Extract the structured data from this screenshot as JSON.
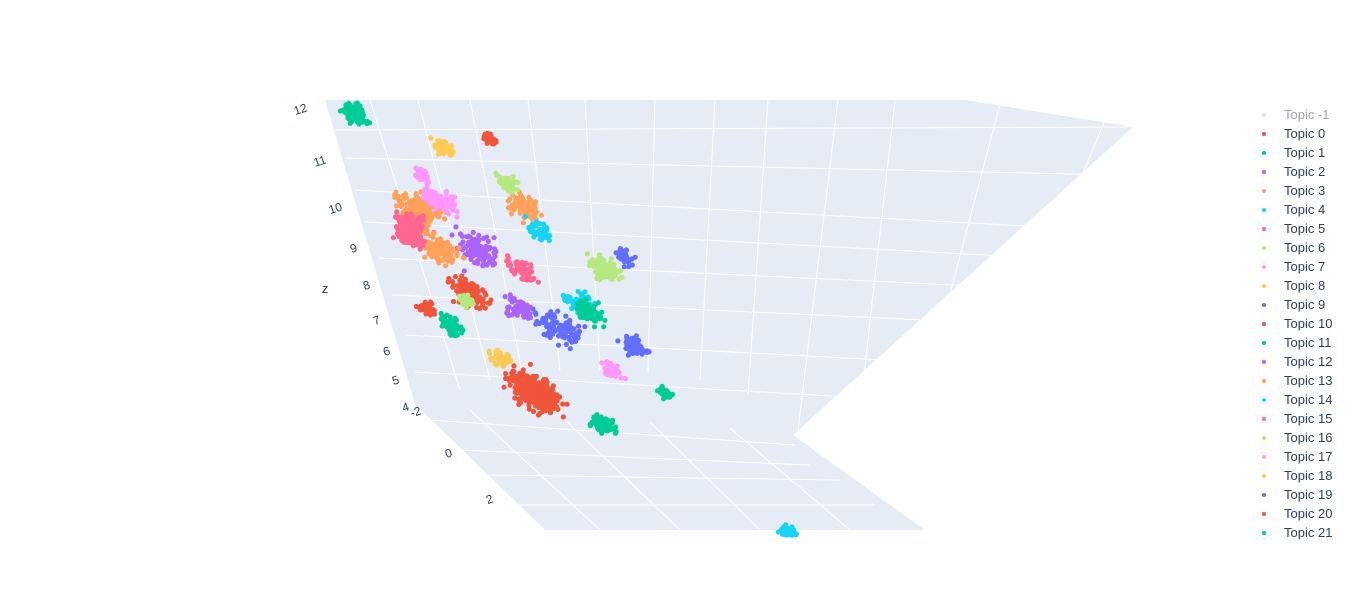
{
  "chart_data": {
    "type": "scatter3d",
    "title": "",
    "scene": {
      "background": "#e5ecf6",
      "gridcolor": "#ffffff",
      "z_axis": {
        "title": "z",
        "ticks": [
          "4",
          "5",
          "6",
          "7",
          "8",
          "9",
          "10",
          "11",
          "12"
        ],
        "range": [
          4,
          12
        ]
      },
      "x_axis": {
        "title": "",
        "ticks": [
          "-2",
          "0",
          "2"
        ],
        "range": [
          -2,
          2
        ]
      }
    },
    "legend": {
      "position": "right",
      "items": [
        {
          "name": "Topic -1",
          "color": "#bcc3cf",
          "visible": false
        },
        {
          "name": "Topic 0",
          "color": "#ef553b",
          "visible": true
        },
        {
          "name": "Topic 1",
          "color": "#00cc96",
          "visible": true
        },
        {
          "name": "Topic 2",
          "color": "#ab63fa",
          "visible": true
        },
        {
          "name": "Topic 3",
          "color": "#ffa15a",
          "visible": true
        },
        {
          "name": "Topic 4",
          "color": "#19d3f3",
          "visible": true
        },
        {
          "name": "Topic 5",
          "color": "#ff6692",
          "visible": true
        },
        {
          "name": "Topic 6",
          "color": "#b6e880",
          "visible": true
        },
        {
          "name": "Topic 7",
          "color": "#ff97ff",
          "visible": true
        },
        {
          "name": "Topic 8",
          "color": "#fecb52",
          "visible": true
        },
        {
          "name": "Topic 9",
          "color": "#636efa",
          "visible": true
        },
        {
          "name": "Topic 10",
          "color": "#ef553b",
          "visible": true
        },
        {
          "name": "Topic 11",
          "color": "#00cc96",
          "visible": true
        },
        {
          "name": "Topic 12",
          "color": "#ab63fa",
          "visible": true
        },
        {
          "name": "Topic 13",
          "color": "#ffa15a",
          "visible": true
        },
        {
          "name": "Topic 14",
          "color": "#19d3f3",
          "visible": true
        },
        {
          "name": "Topic 15",
          "color": "#ff6692",
          "visible": true
        },
        {
          "name": "Topic 16",
          "color": "#b6e880",
          "visible": true
        },
        {
          "name": "Topic 17",
          "color": "#ff97ff",
          "visible": true
        },
        {
          "name": "Topic 18",
          "color": "#fecb52",
          "visible": true
        },
        {
          "name": "Topic 19",
          "color": "#636efa",
          "visible": true
        },
        {
          "name": "Topic 20",
          "color": "#ef553b",
          "visible": true
        },
        {
          "name": "Topic 21",
          "color": "#00cc96",
          "visible": true
        }
      ]
    },
    "clusters": [
      {
        "topic": "Topic 0",
        "x": -0.5,
        "y": 4.6,
        "count": 380,
        "spread": 0.35
      },
      {
        "topic": "Topic 0",
        "x": -0.9,
        "y": 7.1,
        "count": 140,
        "spread": 0.25
      },
      {
        "topic": "Topic 1",
        "x": -1.6,
        "y": 11.7,
        "count": 160,
        "spread": 0.18
      },
      {
        "topic": "Topic 1",
        "x": 0.4,
        "y": 3.9,
        "count": 90,
        "spread": 0.16
      },
      {
        "topic": "Topic 1",
        "x": -1.4,
        "y": 6.2,
        "count": 70,
        "spread": 0.15
      },
      {
        "topic": "Topic 1",
        "x": 1.6,
        "y": 4.9,
        "count": 40,
        "spread": 0.1
      },
      {
        "topic": "Topic 2",
        "x": -0.5,
        "y": 8.3,
        "count": 140,
        "spread": 0.3
      },
      {
        "topic": "Topic 3",
        "x": -1.2,
        "y": 9.2,
        "count": 160,
        "spread": 0.32
      },
      {
        "topic": "Topic 3",
        "x": 0.5,
        "y": 9.6,
        "count": 90,
        "spread": 0.22
      },
      {
        "topic": "Topic 4",
        "x": 0.8,
        "y": 7.1,
        "count": 90,
        "spread": 0.22
      },
      {
        "topic": "Topic 4",
        "x": 2.7,
        "y": 1.4,
        "count": 130,
        "spread": 0.12
      },
      {
        "topic": "Topic 5",
        "x": -1.4,
        "y": 8.8,
        "count": 110,
        "spread": 0.22
      },
      {
        "topic": "Topic 5",
        "x": 0.1,
        "y": 7.9,
        "count": 80,
        "spread": 0.2
      },
      {
        "topic": "Topic 6",
        "x": 1.4,
        "y": 8.1,
        "count": 110,
        "spread": 0.22
      },
      {
        "topic": "Topic 6",
        "x": -1.0,
        "y": 6.9,
        "count": 50,
        "spread": 0.12
      },
      {
        "topic": "Topic 7",
        "x": -0.8,
        "y": 9.6,
        "count": 100,
        "spread": 0.25
      },
      {
        "topic": "Topic 7",
        "x": 0.9,
        "y": 5.4,
        "count": 50,
        "spread": 0.15
      },
      {
        "topic": "Topic 8",
        "x": -0.4,
        "y": 11.0,
        "count": 60,
        "spread": 0.15
      },
      {
        "topic": "Topic 9",
        "x": 0.3,
        "y": 6.4,
        "count": 110,
        "spread": 0.32
      },
      {
        "topic": "Topic 9",
        "x": 1.4,
        "y": 6.1,
        "count": 60,
        "spread": 0.18
      },
      {
        "topic": "Topic 10",
        "x": 0.4,
        "y": 11.4,
        "count": 40,
        "spread": 0.1
      },
      {
        "topic": "Topic 11",
        "x": 0.9,
        "y": 6.9,
        "count": 80,
        "spread": 0.2
      },
      {
        "topic": "Topic 12",
        "x": -0.2,
        "y": 6.8,
        "count": 60,
        "spread": 0.2
      },
      {
        "topic": "Topic 13",
        "x": -1.1,
        "y": 8.2,
        "count": 120,
        "spread": 0.25
      },
      {
        "topic": "Topic 14",
        "x": 0.6,
        "y": 9.0,
        "count": 50,
        "spread": 0.18
      },
      {
        "topic": "Topic 15",
        "x": -1.5,
        "y": 8.5,
        "count": 80,
        "spread": 0.2
      },
      {
        "topic": "Topic 16",
        "x": 0.4,
        "y": 10.2,
        "count": 50,
        "spread": 0.15
      },
      {
        "topic": "Topic 17",
        "x": -0.9,
        "y": 10.2,
        "count": 40,
        "spread": 0.12
      },
      {
        "topic": "Topic 18",
        "x": -0.8,
        "y": 5.4,
        "count": 40,
        "spread": 0.15
      },
      {
        "topic": "Topic 19",
        "x": 1.8,
        "y": 8.5,
        "count": 40,
        "spread": 0.15
      },
      {
        "topic": "Topic 20",
        "x": -1.7,
        "y": 6.6,
        "count": 40,
        "spread": 0.12
      }
    ]
  }
}
